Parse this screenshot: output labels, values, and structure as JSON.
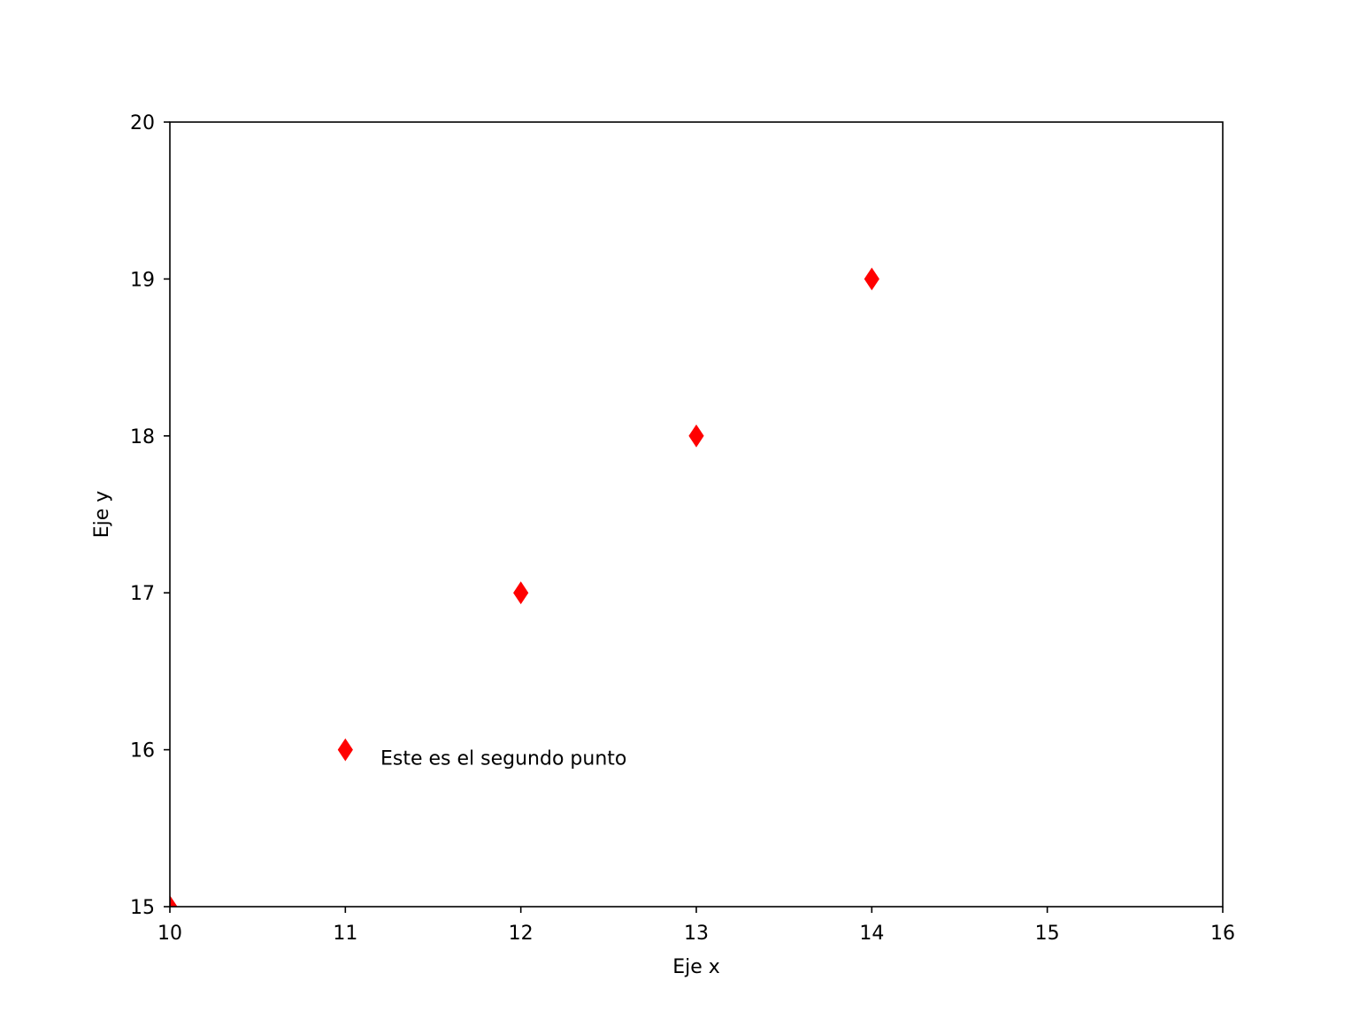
{
  "chart_data": {
    "type": "scatter",
    "title": "",
    "xlabel": "Eje x",
    "ylabel": "Eje y",
    "xlim": [
      10,
      16
    ],
    "ylim": [
      15,
      20
    ],
    "xticks": [
      "10",
      "11",
      "12",
      "13",
      "14",
      "15",
      "16"
    ],
    "yticks": [
      "15",
      "16",
      "17",
      "18",
      "19",
      "20"
    ],
    "grid": false,
    "marker": "diamond",
    "color": "#ff0000",
    "series": [
      {
        "x": [
          10,
          11,
          12,
          13,
          14
        ],
        "y": [
          15,
          16,
          17,
          18,
          19
        ]
      }
    ],
    "annotations": [
      {
        "text": "Este es el segundo punto",
        "x": 11.2,
        "y": 15.95
      }
    ]
  }
}
